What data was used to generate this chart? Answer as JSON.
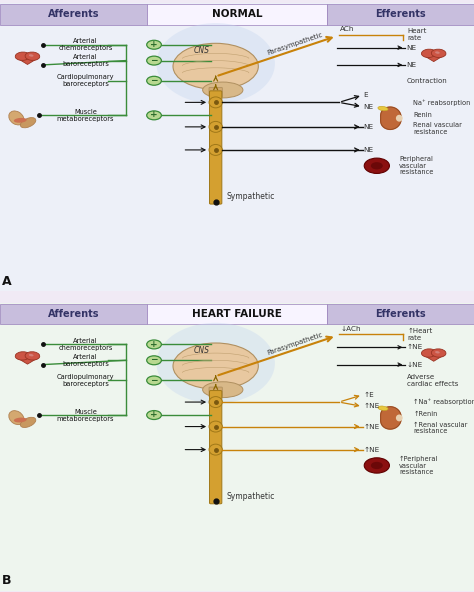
{
  "fig_width": 4.74,
  "fig_height": 5.92,
  "dpi": 100,
  "bg_top": "#f0eaf5",
  "bg_bot": "#eef5f0",
  "header_bg": "#c8bedd",
  "green": "#3a8c3a",
  "orange": "#c8820a",
  "black": "#111111",
  "label_bg": "#b8d890",
  "spine_col": "#d4a030",
  "panel_a": {
    "title": "NORMAL",
    "header_left": "Afferents",
    "header_right": "Efferents",
    "afferents": [
      "Arterial\nchemoreceptors",
      "Arterial\nbaroreceptors",
      "Cardiopulmonary\nbaroreceptors",
      "Muscle\nmetaboreceptors"
    ],
    "signs": [
      "+",
      "−",
      "−",
      "+"
    ],
    "cns": "CNS",
    "parasym": "Parasympathetic",
    "sym": "Sympathetic",
    "ach": "ACh",
    "heart_rate": "Heart\nrate",
    "ne1": "NE",
    "ne2": "NE",
    "contraction": "Contraction",
    "na_reab": "Na⁺ reabsorption",
    "renin": "Renin",
    "renal_vasc": "Renal vascular\nresistance",
    "pvr": "Peripheral\nvascular\nresistance",
    "gang_labels": [
      "E",
      "NE",
      "NE",
      "NE"
    ],
    "letter": "A"
  },
  "panel_b": {
    "title": "HEART FAILURE",
    "header_left": "Afferents",
    "header_right": "Efferents",
    "afferents": [
      "Arterial\nchemoreceptors",
      "Arterial\nbaroreceptors",
      "Cardiopulmonary\nbaroreceptors",
      "Muscle\nmetaboreceptors"
    ],
    "signs": [
      "+",
      "−",
      "−",
      "+"
    ],
    "cns": "CNS",
    "parasym": "Parasympathetic",
    "sym": "Sympathetic",
    "ach": "↓ACh",
    "heart_rate": "↑Heart\nrate",
    "ne1": "↑NE",
    "ne2": "↓NE",
    "contraction": "Adverse\ncardiac effects",
    "na_reab": "↑Na⁺ reabsorption",
    "renin": "↑Renin",
    "renal_vasc": "↑Renal vascular\nresistance",
    "pvr": "↑Peripheral\nvascular\nresistance",
    "gang_labels": [
      "↑E",
      "↑NE",
      "↑NE",
      "↑NE"
    ],
    "letter": "B"
  }
}
